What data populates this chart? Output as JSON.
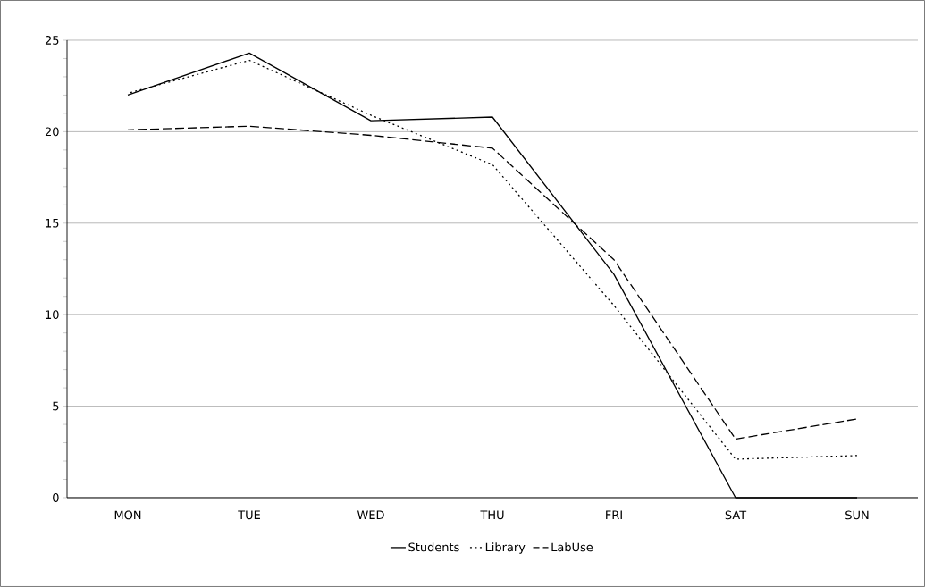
{
  "chart_data": {
    "type": "line",
    "categories": [
      "MON",
      "TUE",
      "WED",
      "THU",
      "FRI",
      "SAT",
      "SUN"
    ],
    "series": [
      {
        "name": "Students",
        "color": "#000000",
        "line_style": "solid",
        "values": [
          22.0,
          24.3,
          20.6,
          20.8,
          12.2,
          0,
          0
        ]
      },
      {
        "name": "Library",
        "color": "#000000",
        "line_style": "dotted",
        "values": [
          22.1,
          23.9,
          20.9,
          18.2,
          10.5,
          2.1,
          2.3
        ]
      },
      {
        "name": "LabUse",
        "color": "#000000",
        "line_style": "dashed",
        "values": [
          20.1,
          20.3,
          19.8,
          19.1,
          13.0,
          3.2,
          4.3
        ]
      }
    ],
    "ylim": [
      0,
      25
    ],
    "yticks": [
      0,
      5,
      10,
      15,
      20,
      25
    ],
    "grid": "y",
    "legend": "bottom",
    "marker": "none"
  }
}
